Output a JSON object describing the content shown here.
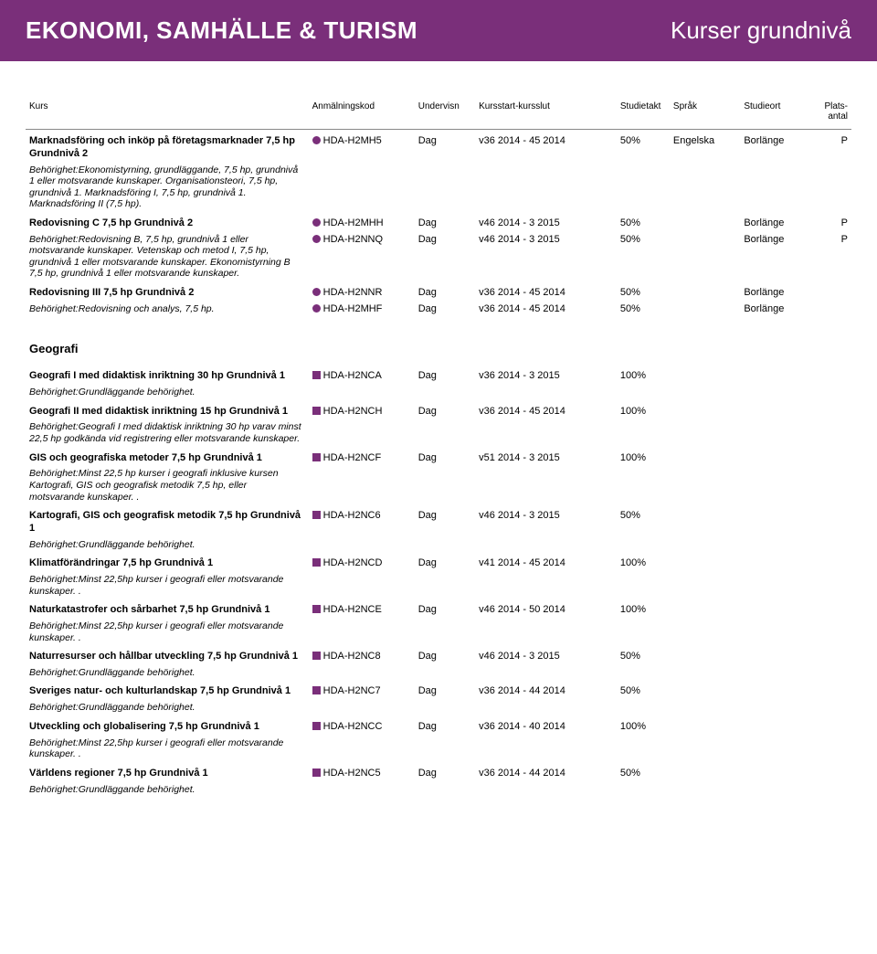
{
  "colors": {
    "header_bg": "#7a2f7a",
    "header_text": "#ffffff",
    "bullet_purple": "#7a2f7a",
    "square_purple": "#7a2f7a"
  },
  "header": {
    "left": "EKONOMI, SAMHÄLLE & TURISM",
    "right": "Kurser grundnivå"
  },
  "columns": {
    "kurs": "Kurs",
    "code": "Anmälningskod",
    "undervisn": "Undervisn",
    "period": "Kursstart-kursslut",
    "takt": "Studietakt",
    "sprak": "Språk",
    "ort": "Studieort",
    "plats": "Plats-\nantal"
  },
  "section1": [
    {
      "title": "Marknadsföring och inköp på företagsmarknader 7,5 hp Grundnivå 2",
      "desc": "Behörighet:Ekonomistyrning, grundläggande, 7,5 hp, grundnivå 1 eller motsvarande kunskaper. Organisationsteori, 7,5 hp, grundnivå 1. Marknadsföring I, 7,5 hp, grundnivå 1. Marknadsföring II (7,5 hp).",
      "rows": [
        {
          "code": "HDA-H2MH5",
          "undervisn": "Dag",
          "period": "v36 2014 - 45 2014",
          "takt": "50%",
          "sprak": "Engelska",
          "ort": "Borlänge",
          "plats": "P"
        }
      ]
    },
    {
      "title": "Redovisning C 7,5 hp Grundnivå 2",
      "desc": "Behörighet:Redovisning B, 7,5 hp, grundnivå 1 eller motsvarande kunskaper. Vetenskap och metod I, 7,5 hp, grundnivå 1 eller motsvarande kunskaper. Ekonomistyrning B 7,5 hp, grundnivå 1 eller motsvarande kunskaper.",
      "rows": [
        {
          "code": "HDA-H2MHH",
          "undervisn": "Dag",
          "period": "v46 2014 - 3 2015",
          "takt": "50%",
          "sprak": "",
          "ort": "Borlänge",
          "plats": "P"
        },
        {
          "code": "HDA-H2NNQ",
          "undervisn": "Dag",
          "period": "v46 2014 - 3 2015",
          "takt": "50%",
          "sprak": "",
          "ort": "Borlänge",
          "plats": "P"
        }
      ]
    },
    {
      "title": "Redovisning III 7,5 hp Grundnivå 2",
      "desc": "Behörighet:Redovisning och analys, 7,5 hp.",
      "rows": [
        {
          "code": "HDA-H2NNR",
          "undervisn": "Dag",
          "period": "v36 2014 - 45 2014",
          "takt": "50%",
          "sprak": "",
          "ort": "Borlänge",
          "plats": ""
        },
        {
          "code": "HDA-H2MHF",
          "undervisn": "Dag",
          "period": "v36 2014 - 45 2014",
          "takt": "50%",
          "sprak": "",
          "ort": "Borlänge",
          "plats": ""
        }
      ]
    }
  ],
  "section2_heading": "Geografi",
  "section2": [
    {
      "title": "Geografi I med didaktisk inriktning 30 hp Grundnivå 1",
      "desc": "Behörighet:Grundläggande behörighet.",
      "rows": [
        {
          "code": "HDA-H2NCA",
          "undervisn": "Dag",
          "period": "v36 2014 - 3 2015",
          "takt": "100%",
          "sprak": "",
          "ort": "",
          "plats": ""
        }
      ]
    },
    {
      "title": "Geografi II med didaktisk inriktning 15 hp Grundnivå 1",
      "desc": "Behörighet:Geografi I med didaktisk inriktning 30 hp varav minst 22,5 hp godkända vid registrering eller motsvarande kunskaper.",
      "rows": [
        {
          "code": "HDA-H2NCH",
          "undervisn": "Dag",
          "period": "v36 2014 - 45 2014",
          "takt": "100%",
          "sprak": "",
          "ort": "",
          "plats": ""
        }
      ]
    },
    {
      "title": "GIS och geografiska metoder 7,5 hp Grundnivå 1",
      "desc": "Behörighet:Minst 22,5 hp kurser i geografi inklusive kursen Kartografi, GIS och geografisk metodik 7,5 hp, eller motsvarande kunskaper. .",
      "rows": [
        {
          "code": "HDA-H2NCF",
          "undervisn": "Dag",
          "period": "v51 2014 - 3 2015",
          "takt": "100%",
          "sprak": "",
          "ort": "",
          "plats": ""
        }
      ]
    },
    {
      "title": "Kartografi, GIS och geografisk metodik 7,5 hp Grundnivå 1",
      "desc": "Behörighet:Grundläggande behörighet.",
      "rows": [
        {
          "code": "HDA-H2NC6",
          "undervisn": "Dag",
          "period": "v46 2014 - 3 2015",
          "takt": "50%",
          "sprak": "",
          "ort": "",
          "plats": ""
        }
      ]
    },
    {
      "title": "Klimatförändringar 7,5 hp Grundnivå 1",
      "desc": "Behörighet:Minst 22,5hp kurser i geografi eller motsvarande kunskaper. .",
      "rows": [
        {
          "code": "HDA-H2NCD",
          "undervisn": "Dag",
          "period": "v41 2014 - 45 2014",
          "takt": "100%",
          "sprak": "",
          "ort": "",
          "plats": ""
        }
      ]
    },
    {
      "title": "Naturkatastrofer och sårbarhet 7,5 hp Grundnivå 1",
      "desc": "Behörighet:Minst 22,5hp kurser i geografi eller motsvarande kunskaper. .",
      "rows": [
        {
          "code": "HDA-H2NCE",
          "undervisn": "Dag",
          "period": "v46 2014 - 50 2014",
          "takt": "100%",
          "sprak": "",
          "ort": "",
          "plats": ""
        }
      ]
    },
    {
      "title": "Naturresurser och hållbar utveckling 7,5 hp Grundnivå 1",
      "desc": "Behörighet:Grundläggande behörighet.",
      "rows": [
        {
          "code": "HDA-H2NC8",
          "undervisn": "Dag",
          "period": "v46 2014 - 3 2015",
          "takt": "50%",
          "sprak": "",
          "ort": "",
          "plats": ""
        }
      ]
    },
    {
      "title": "Sveriges natur- och kulturlandskap 7,5 hp Grundnivå 1",
      "desc": "Behörighet:Grundläggande behörighet.",
      "rows": [
        {
          "code": "HDA-H2NC7",
          "undervisn": "Dag",
          "period": "v36 2014 - 44 2014",
          "takt": "50%",
          "sprak": "",
          "ort": "",
          "plats": ""
        }
      ]
    },
    {
      "title": "Utveckling och globalisering 7,5 hp Grundnivå 1",
      "desc": "Behörighet:Minst 22,5hp kurser i geografi eller motsvarande kunskaper. .",
      "rows": [
        {
          "code": "HDA-H2NCC",
          "undervisn": "Dag",
          "period": "v36 2014 - 40 2014",
          "takt": "100%",
          "sprak": "",
          "ort": "",
          "plats": ""
        }
      ]
    },
    {
      "title": "Världens regioner 7,5 hp Grundnivå 1",
      "desc": "Behörighet:Grundläggande behörighet.",
      "rows": [
        {
          "code": "HDA-H2NC5",
          "undervisn": "Dag",
          "period": "v36 2014 - 44 2014",
          "takt": "50%",
          "sprak": "",
          "ort": "",
          "plats": ""
        }
      ]
    }
  ]
}
